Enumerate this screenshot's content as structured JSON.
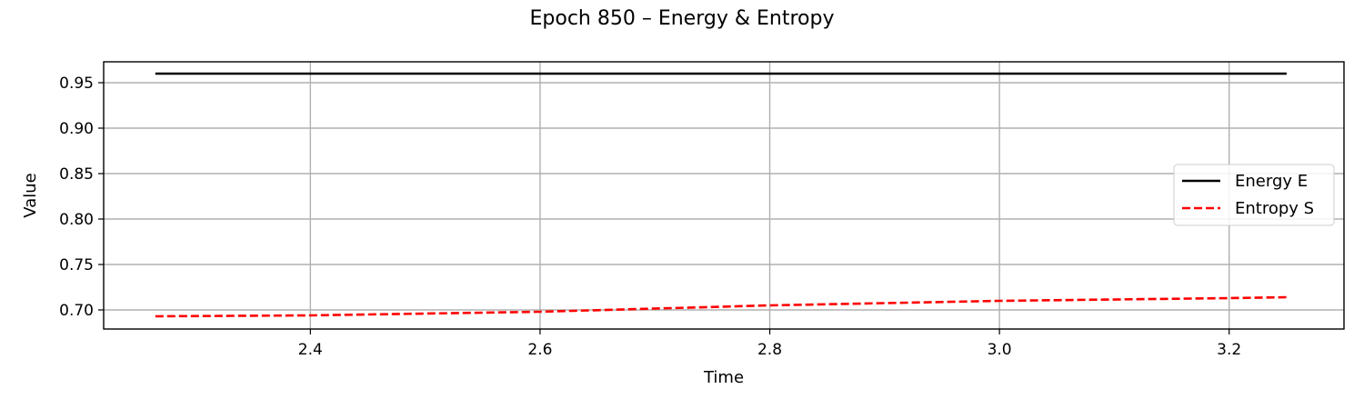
{
  "chart_data": {
    "type": "line",
    "title": "Epoch 850 – Energy & Entropy",
    "xlabel": "Time",
    "ylabel": "Value",
    "xlim": [
      2.22,
      3.3
    ],
    "ylim": [
      0.679,
      0.973
    ],
    "xticks": [
      2.4,
      2.6,
      2.8,
      3.0,
      3.2
    ],
    "xtick_labels": [
      "2.4",
      "2.6",
      "2.8",
      "3.0",
      "3.2"
    ],
    "yticks": [
      0.7,
      0.75,
      0.8,
      0.85,
      0.9,
      0.95
    ],
    "ytick_labels": [
      "0.70",
      "0.75",
      "0.80",
      "0.85",
      "0.90",
      "0.95"
    ],
    "grid": true,
    "legend_position": "center-right",
    "series": [
      {
        "name": "Energy E",
        "color": "#000000",
        "style": "solid",
        "x": [
          2.265,
          2.5,
          2.75,
          3.0,
          3.25
        ],
        "y": [
          0.96,
          0.96,
          0.96,
          0.96,
          0.96
        ]
      },
      {
        "name": "Entropy S",
        "color": "#ff0000",
        "style": "dashed",
        "x": [
          2.265,
          2.4,
          2.6,
          2.8,
          3.0,
          3.2,
          3.25
        ],
        "y": [
          0.693,
          0.694,
          0.698,
          0.705,
          0.71,
          0.713,
          0.714
        ]
      }
    ]
  }
}
